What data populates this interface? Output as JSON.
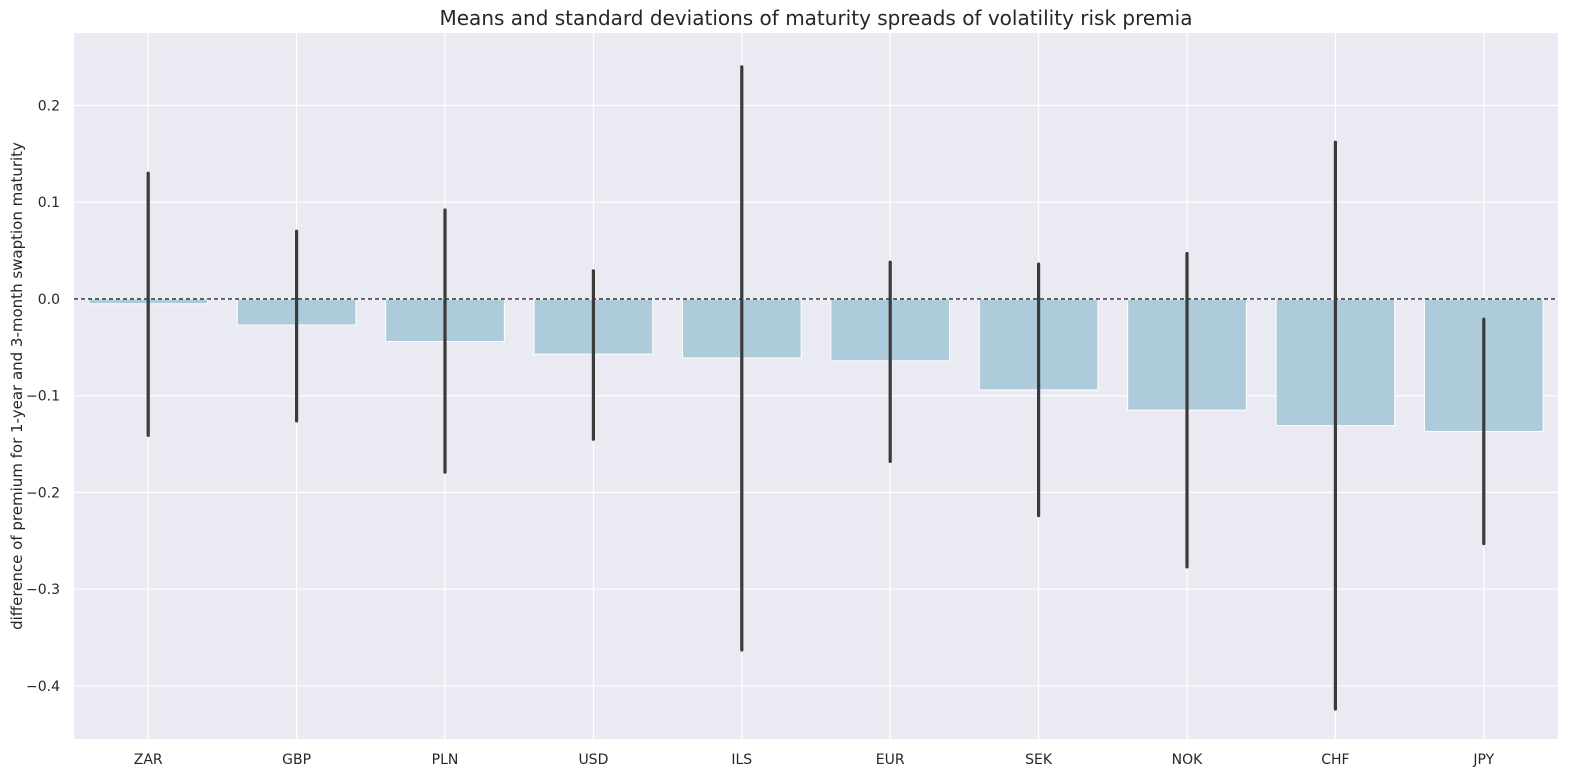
{
  "chart_data": {
    "type": "bar",
    "title": "Means and standard deviations of maturity spreads of volatility risk premia",
    "xlabel": "",
    "ylabel": "difference of premium for 1-year and 3-month swaption maturity",
    "categories": [
      "ZAR",
      "GBP",
      "PLN",
      "USD",
      "ILS",
      "EUR",
      "SEK",
      "NOK",
      "CHF",
      "JPY"
    ],
    "values": [
      -0.005,
      -0.027,
      -0.044,
      -0.057,
      -0.061,
      -0.064,
      -0.094,
      -0.115,
      -0.131,
      -0.137
    ],
    "error_low": [
      -0.141,
      -0.126,
      -0.179,
      -0.145,
      -0.363,
      -0.168,
      -0.224,
      -0.277,
      -0.424,
      -0.253
    ],
    "error_high": [
      0.13,
      0.07,
      0.092,
      0.029,
      0.24,
      0.038,
      0.036,
      0.047,
      0.162,
      -0.021
    ],
    "ylim": [
      -0.455,
      0.275
    ],
    "yticks": [
      0.2,
      0.1,
      0.0,
      -0.1,
      -0.2,
      -0.3,
      -0.4
    ],
    "ytick_labels": [
      "0.2",
      "0.1",
      "0.0",
      "−0.1",
      "−0.2",
      "−0.3",
      "−0.4"
    ],
    "reference_line": 0,
    "grid": true,
    "colors": {
      "background": "#eaeaf2",
      "bar": "#adcbda",
      "errorbar": "#3a3a3a",
      "grid": "#ffffff",
      "reference_line": "#000000"
    }
  }
}
